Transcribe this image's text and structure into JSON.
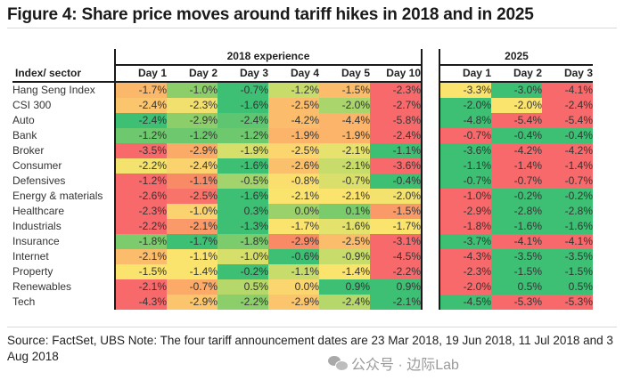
{
  "title": "Figure 4: Share price moves around tariff hikes in 2018 and in 2025",
  "footnote": "Source: FactSet, UBS Note: The four tariff announcement dates are 23 Mar 2018, 19 Jun 2018, 11 Jul 2018 and 3 Aug 2018",
  "watermark": "公众号 · 边际Lab",
  "colors": {
    "green": "#3dbf74",
    "lightgreen": "#8ccf6a",
    "yellowgreen": "#c7dc6a",
    "yellow": "#fbe46e",
    "orange": "#fbbd6c",
    "lightred": "#f98a66",
    "red": "#f8696b"
  },
  "chart_data": {
    "type": "heatmap",
    "title": "Figure 4: Share price moves around tariff hikes in 2018 and in 2025",
    "row_header": "Index/ sector",
    "groups": [
      {
        "name": "2018 experience",
        "columns": [
          "Day 1",
          "Day 2",
          "Day 3",
          "Day 4",
          "Day 5",
          "Day 10"
        ]
      },
      {
        "name": "2025",
        "columns": [
          "Day 1",
          "Day 2",
          "Day 3"
        ]
      }
    ],
    "rows": [
      {
        "label": "Hang Seng Index",
        "values": [
          "-1.7%",
          "-1.0%",
          "-0.7%",
          "-1.2%",
          "-1.5%",
          "-2.3%",
          "-3.3%",
          "-3.0%",
          "-4.1%"
        ],
        "colors": [
          "#fbb86a",
          "#8ccf6a",
          "#3dbf74",
          "#c7dc6a",
          "#fbbd6c",
          "#f8696b",
          "#fbe46e",
          "#3dbf74",
          "#f8696b"
        ]
      },
      {
        "label": "CSI 300",
        "values": [
          "-2.4%",
          "-2.3%",
          "-1.6%",
          "-2.5%",
          "-2.0%",
          "-2.7%",
          "-2.0%",
          "-2.0%",
          "-2.4%"
        ],
        "colors": [
          "#fbc56e",
          "#f2e06e",
          "#3dbf74",
          "#fbbd6c",
          "#a9d56c",
          "#f8696b",
          "#3dbf74",
          "#fbe46e",
          "#f8696b"
        ]
      },
      {
        "label": "Auto",
        "values": [
          "-2.4%",
          "-2.9%",
          "-2.4%",
          "-4.2%",
          "-4.4%",
          "-5.8%",
          "-4.8%",
          "-5.4%",
          "-5.4%"
        ],
        "colors": [
          "#3dbf74",
          "#8ccf6a",
          "#5ec571",
          "#fbbd6c",
          "#fbb46a",
          "#f8696b",
          "#3dbf74",
          "#f8696b",
          "#f8696b"
        ]
      },
      {
        "label": "Bank",
        "values": [
          "-1.2%",
          "-1.2%",
          "-1.2%",
          "-1.9%",
          "-1.9%",
          "-2.4%",
          "-0.7%",
          "-0.4%",
          "-0.4%"
        ],
        "colors": [
          "#6ec86e",
          "#6ec86e",
          "#6ec86e",
          "#fbb46a",
          "#fbb46a",
          "#f8696b",
          "#f8696b",
          "#3dbf74",
          "#3dbf74"
        ]
      },
      {
        "label": "Broker",
        "values": [
          "-3.5%",
          "-2.9%",
          "-1.9%",
          "-2.5%",
          "-2.1%",
          "-1.1%",
          "-3.6%",
          "-4.2%",
          "-4.2%"
        ],
        "colors": [
          "#f8696b",
          "#fbaa68",
          "#d6df6a",
          "#fbd56e",
          "#e7e26e",
          "#3dbf74",
          "#3dbf74",
          "#f8696b",
          "#f8696b"
        ]
      },
      {
        "label": "Consumer",
        "values": [
          "-2.2%",
          "-2.4%",
          "-1.6%",
          "-2.6%",
          "-2.1%",
          "-3.6%",
          "-1.1%",
          "-1.4%",
          "-1.4%"
        ],
        "colors": [
          "#f4e26e",
          "#fbd36e",
          "#3dbf74",
          "#fbc06c",
          "#c7dc6a",
          "#f8696b",
          "#3dbf74",
          "#f8696b",
          "#f8696b"
        ]
      },
      {
        "label": "Defensives",
        "values": [
          "-1.2%",
          "-1.1%",
          "-0.5%",
          "-0.8%",
          "-0.7%",
          "-0.4%",
          "-0.7%",
          "-0.7%",
          "-0.7%"
        ],
        "colors": [
          "#f8696b",
          "#f98a66",
          "#a3d36c",
          "#fbdf6e",
          "#d9df6a",
          "#3dbf74",
          "#3dbf74",
          "#f8696b",
          "#f8696b"
        ]
      },
      {
        "label": "Energy & materials",
        "values": [
          "-2.6%",
          "-2.5%",
          "-1.6%",
          "-2.1%",
          "-2.1%",
          "-2.0%",
          "-1.0%",
          "-0.2%",
          "-0.2%"
        ],
        "colors": [
          "#f8696b",
          "#f8736a",
          "#3dbf74",
          "#fbe46e",
          "#fbe46e",
          "#f3e26e",
          "#f8696b",
          "#3dbf74",
          "#3dbf74"
        ]
      },
      {
        "label": "Healthcare",
        "values": [
          "-2.3%",
          "-1.0%",
          "0.3%",
          "0.0%",
          "0.1%",
          "-1.5%",
          "-2.9%",
          "-2.8%",
          "-2.8%"
        ],
        "colors": [
          "#f8696b",
          "#fbd36e",
          "#3dbf74",
          "#9bd16b",
          "#7acb6c",
          "#fa9a68",
          "#f8696b",
          "#3dbf74",
          "#3dbf74"
        ]
      },
      {
        "label": "Industrials",
        "values": [
          "-2.2%",
          "-2.1%",
          "-1.3%",
          "-1.7%",
          "-1.6%",
          "-1.7%",
          "-1.8%",
          "-1.6%",
          "-1.6%"
        ],
        "colors": [
          "#f8696b",
          "#fa9a68",
          "#3dbf74",
          "#fbe46e",
          "#e2e26c",
          "#fbe46e",
          "#f8696b",
          "#3dbf74",
          "#3dbf74"
        ]
      },
      {
        "label": "Insurance",
        "values": [
          "-1.8%",
          "-1.7%",
          "-1.8%",
          "-2.9%",
          "-2.5%",
          "-3.1%",
          "-3.7%",
          "-4.1%",
          "-4.1%"
        ],
        "colors": [
          "#7ccb6c",
          "#3dbf74",
          "#7ccb6c",
          "#f98a66",
          "#fbbd6c",
          "#f8696b",
          "#3dbf74",
          "#f8696b",
          "#f8696b"
        ]
      },
      {
        "label": "Internet",
        "values": [
          "-2.1%",
          "-1.1%",
          "-1.0%",
          "-0.6%",
          "-0.9%",
          "-4.5%",
          "-4.3%",
          "-3.5%",
          "-3.5%"
        ],
        "colors": [
          "#fbbd6c",
          "#fbe46e",
          "#d6df6a",
          "#3dbf74",
          "#c7dc6a",
          "#f8696b",
          "#f8696b",
          "#3dbf74",
          "#3dbf74"
        ]
      },
      {
        "label": "Property",
        "values": [
          "-1.5%",
          "-1.4%",
          "-0.2%",
          "-1.1%",
          "-1.4%",
          "-2.2%",
          "-2.3%",
          "-1.5%",
          "-1.5%"
        ],
        "colors": [
          "#fbe46e",
          "#fbe46e",
          "#3dbf74",
          "#c7dc6a",
          "#fbe46e",
          "#f8696b",
          "#f8696b",
          "#3dbf74",
          "#3dbf74"
        ]
      },
      {
        "label": "Renewables",
        "values": [
          "-2.1%",
          "-0.7%",
          "0.5%",
          "0.0%",
          "0.9%",
          "0.9%",
          "-2.0%",
          "0.5%",
          "0.5%"
        ],
        "colors": [
          "#f8696b",
          "#fbaa68",
          "#b6d86b",
          "#fbd56e",
          "#3dbf74",
          "#3dbf74",
          "#f8696b",
          "#3dbf74",
          "#3dbf74"
        ]
      },
      {
        "label": "Tech",
        "values": [
          "-4.3%",
          "-2.9%",
          "-2.2%",
          "-2.9%",
          "-2.4%",
          "-2.1%",
          "-4.5%",
          "-5.3%",
          "-5.3%"
        ],
        "colors": [
          "#f8696b",
          "#fbc56e",
          "#8ccf6a",
          "#fbc56e",
          "#b6d86b",
          "#3dbf74",
          "#3dbf74",
          "#f8696b",
          "#f8696b"
        ]
      }
    ]
  }
}
